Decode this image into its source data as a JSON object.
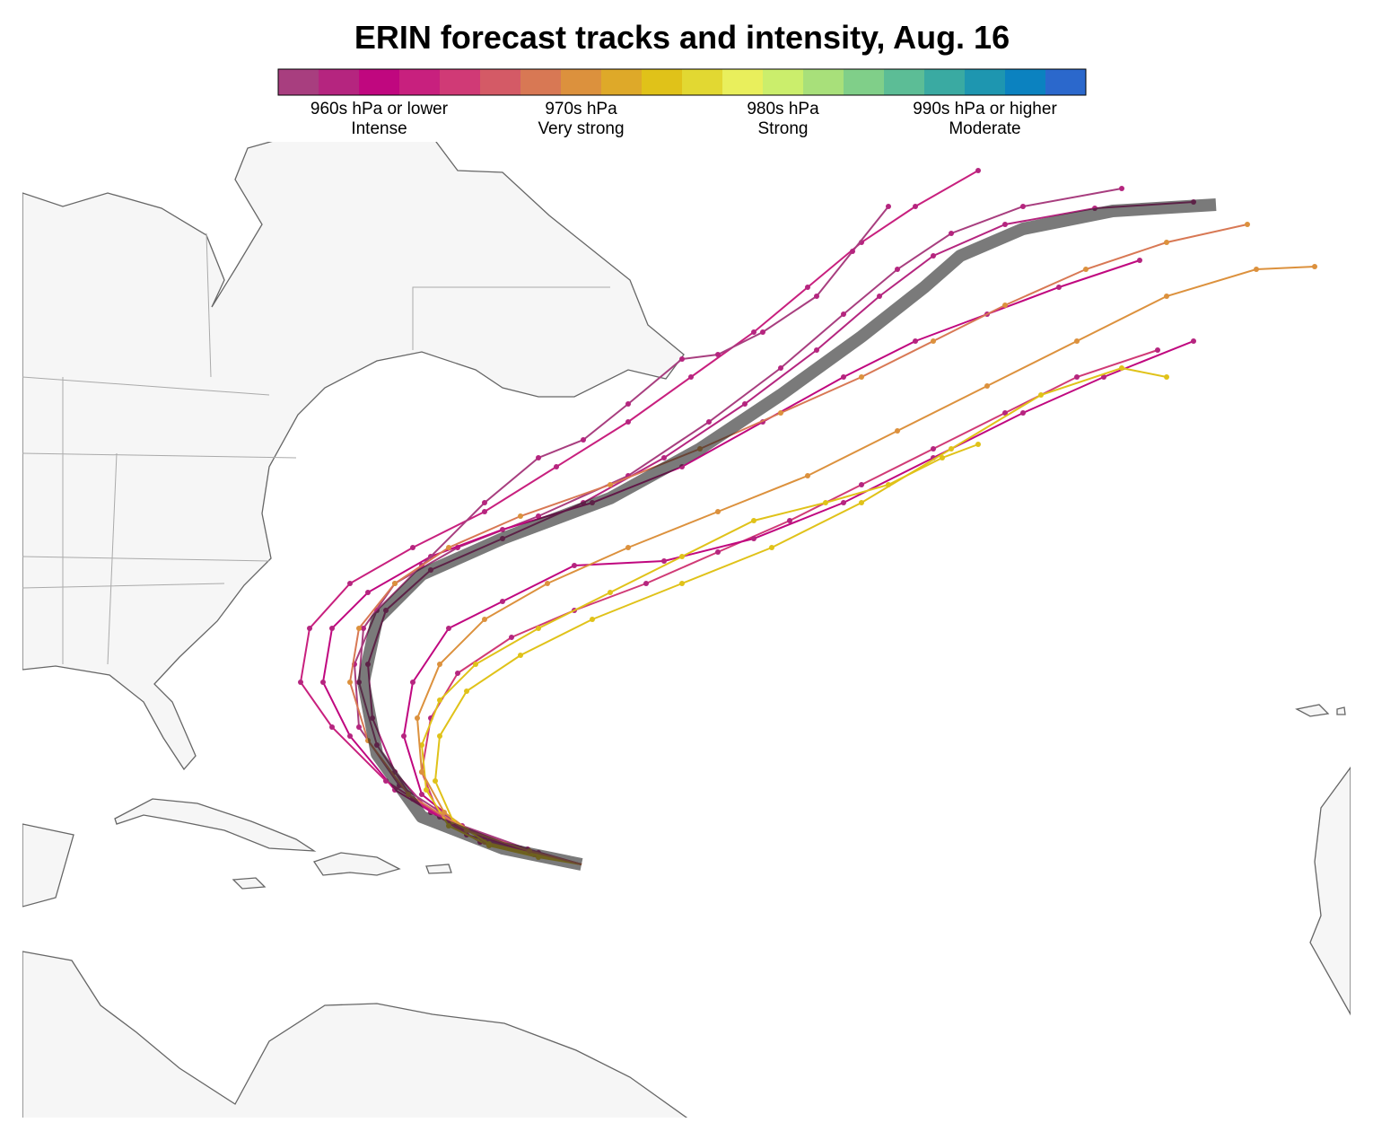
{
  "title": "ERIN forecast tracks and intensity, Aug. 16",
  "legend": {
    "colors": [
      "#a83e7f",
      "#b5257f",
      "#c0077f",
      "#c8207e",
      "#d03a76",
      "#d45a66",
      "#d87854",
      "#dc913d",
      "#dea929",
      "#e0c219",
      "#e2d832",
      "#e9ef5c",
      "#cbee6c",
      "#a8e07a",
      "#80cf89",
      "#5cbd96",
      "#3aaaa2",
      "#1e96b0",
      "#0b82c0",
      "#2b68cc"
    ],
    "labels": [
      {
        "pressure": "960s hPa or lower",
        "category": "Intense"
      },
      {
        "pressure": "970s hPa",
        "category": "Very strong"
      },
      {
        "pressure": "980s hPa",
        "category": "Strong"
      },
      {
        "pressure": "990s hPa or higher",
        "category": "Moderate"
      }
    ]
  }
}
